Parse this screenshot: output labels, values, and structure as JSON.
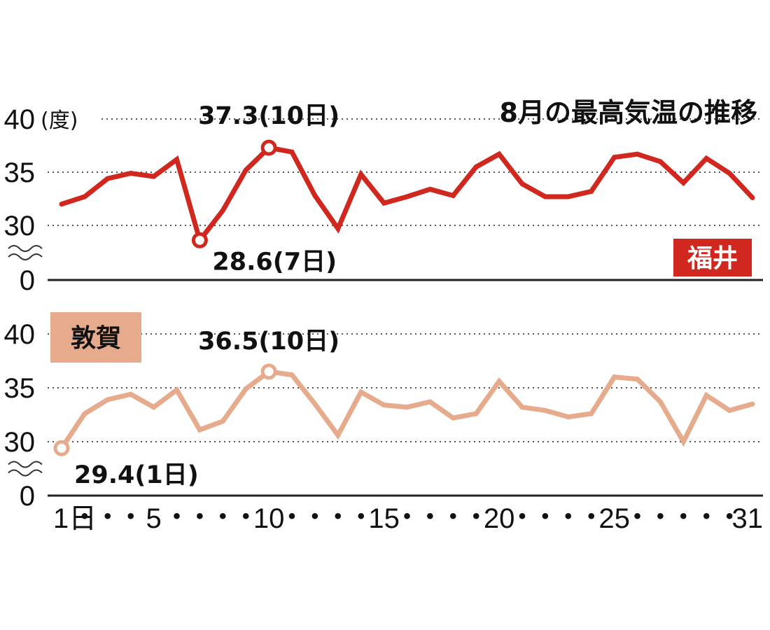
{
  "title": "8月の最高気温の推移",
  "unit_label": "(度)",
  "colors": {
    "fukui": "#d0281e",
    "tsuruga": "#e6ab8c",
    "grid": "#555555",
    "text": "#111111"
  },
  "chart_data": [
    {
      "type": "line",
      "panel": "top",
      "station": "福井",
      "color": "#d0281e",
      "yticks": [
        "40",
        "35",
        "30",
        "0"
      ],
      "ylim": [
        30,
        40
      ],
      "axis_break": true,
      "x": [
        1,
        2,
        3,
        4,
        5,
        6,
        7,
        8,
        9,
        10,
        11,
        12,
        13,
        14,
        15,
        16,
        17,
        18,
        19,
        20,
        21,
        22,
        23,
        24,
        25,
        26,
        27,
        28,
        29,
        30,
        31
      ],
      "values": [
        32.0,
        32.7,
        34.4,
        34.9,
        34.6,
        36.2,
        28.6,
        31.4,
        35.2,
        37.3,
        36.9,
        32.8,
        29.7,
        34.8,
        32.1,
        32.7,
        33.4,
        32.8,
        35.5,
        36.7,
        33.9,
        32.7,
        32.7,
        33.2,
        36.4,
        36.7,
        36.0,
        34.0,
        36.3,
        34.9,
        32.6
      ],
      "highlights": [
        {
          "day": 10,
          "value": 37.3,
          "label": "37.3(10日)"
        },
        {
          "day": 7,
          "value": 28.6,
          "label": "28.6(7日)"
        }
      ],
      "grid": true,
      "legend": "bottom-right"
    },
    {
      "type": "line",
      "panel": "bottom",
      "station": "敦賀",
      "color": "#e6ab8c",
      "yticks": [
        "40",
        "35",
        "30",
        "0"
      ],
      "ylim": [
        30,
        40
      ],
      "axis_break": true,
      "x": [
        1,
        2,
        3,
        4,
        5,
        6,
        7,
        8,
        9,
        10,
        11,
        12,
        13,
        14,
        15,
        16,
        17,
        18,
        19,
        20,
        21,
        22,
        23,
        24,
        25,
        26,
        27,
        28,
        29,
        30,
        31
      ],
      "values": [
        29.4,
        32.6,
        33.9,
        34.4,
        33.2,
        34.8,
        31.1,
        31.9,
        34.9,
        36.5,
        36.2,
        33.5,
        30.6,
        34.6,
        33.4,
        33.2,
        33.7,
        32.2,
        32.6,
        35.6,
        33.2,
        32.9,
        32.3,
        32.6,
        36.0,
        35.8,
        33.7,
        30.0,
        34.3,
        32.9,
        33.5
      ],
      "highlights": [
        {
          "day": 10,
          "value": 36.5,
          "label": "36.5(10日)"
        },
        {
          "day": 1,
          "value": 29.4,
          "label": "29.4(1日)"
        }
      ],
      "grid": true,
      "legend": "top-left"
    }
  ],
  "x_axis": {
    "labels": [
      {
        "day": 1,
        "text": "1日"
      },
      {
        "day": 5,
        "text": "5"
      },
      {
        "day": 10,
        "text": "10"
      },
      {
        "day": 15,
        "text": "15"
      },
      {
        "day": 20,
        "text": "20"
      },
      {
        "day": 25,
        "text": "25"
      },
      {
        "day": 31,
        "text": "31"
      }
    ],
    "dot_days": [
      2,
      3,
      4,
      6,
      7,
      8,
      9,
      11,
      12,
      13,
      14,
      16,
      17,
      18,
      19,
      21,
      22,
      23,
      24,
      26,
      27,
      28,
      29,
      30
    ],
    "dot": "・"
  }
}
